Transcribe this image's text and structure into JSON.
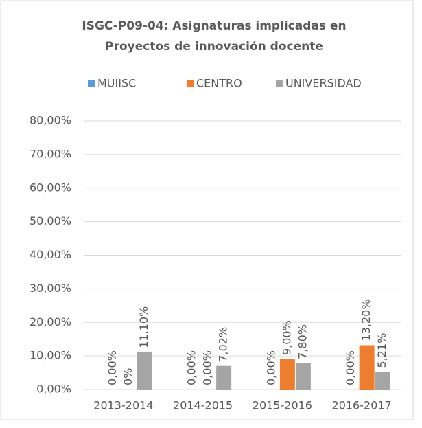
{
  "chart_data": {
    "type": "bar",
    "title": [
      "ISGC-P09-04: Asignaturas implicadas en",
      "Proyectos de innovación docente"
    ],
    "categories": [
      "2013-2014",
      "2014-2015",
      "2015-2016",
      "2016-2017"
    ],
    "series": [
      {
        "name": "MUIISC",
        "color": "#5b9bd5",
        "values": [
          0,
          0,
          0,
          0
        ],
        "value_labels": [
          "0,00%",
          "0,00%",
          "0,00%",
          "0,00%"
        ]
      },
      {
        "name": "CENTRO",
        "color": "#ed7d31",
        "values": [
          0,
          0,
          9,
          13.2
        ],
        "value_labels": [
          "0%",
          "0,00%",
          "9,00%",
          "13,20%"
        ]
      },
      {
        "name": "UNIVERSIDAD",
        "color": "#a5a5a5",
        "values": [
          11.1,
          7.02,
          7.8,
          5.21
        ],
        "value_labels": [
          "11,10%",
          "7,02%",
          "7,80%",
          "5,21%"
        ]
      }
    ],
    "ylim": [
      0,
      80
    ],
    "yticks": [
      {
        "value": 0,
        "label": "0,00%"
      },
      {
        "value": 10,
        "label": "10,00%"
      },
      {
        "value": 20,
        "label": "20,00%"
      },
      {
        "value": 30,
        "label": "30,00%"
      },
      {
        "value": 40,
        "label": "40,00%"
      },
      {
        "value": 50,
        "label": "50,00%"
      },
      {
        "value": 60,
        "label": "60,00%"
      },
      {
        "value": 70,
        "label": "70,00%"
      },
      {
        "value": 80,
        "label": "80,00%"
      }
    ],
    "grid": true,
    "legend": "top"
  }
}
